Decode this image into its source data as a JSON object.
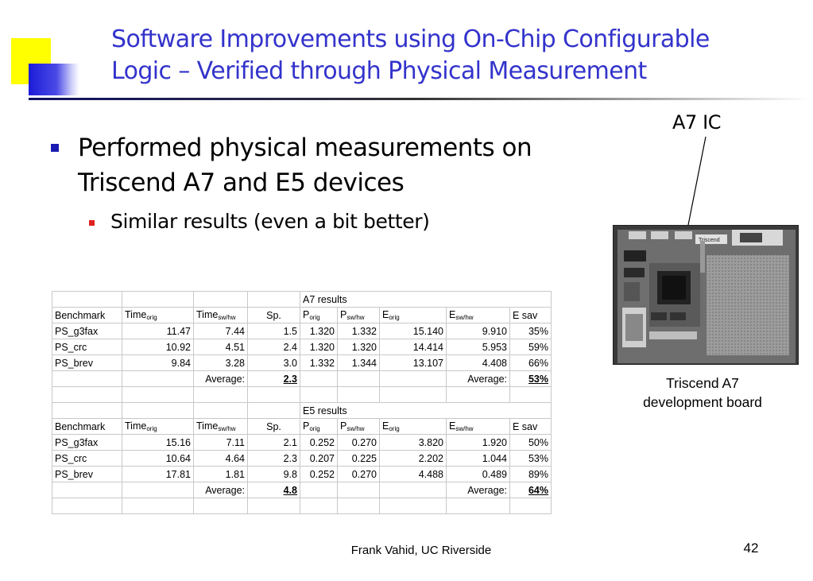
{
  "slide": {
    "title_line1": "Software Improvements using On-Chip Configurable",
    "title_line2": "Logic – Verified through Physical Measurement",
    "bullet1_line1": "Performed physical measurements on",
    "bullet1_line2": "Triscend A7 and E5 devices",
    "bullet2": "Similar results (even a bit better)",
    "chip_label": "A7 IC",
    "board_caption_line1": "Triscend A7",
    "board_caption_line2": "development board",
    "board_brand": "Triscend",
    "footer": "Frank Vahid, UC Riverside",
    "page_number": "42",
    "colors": {
      "title": "#3333cc",
      "bullet1": "#1a1ab3",
      "bullet2": "#e02020",
      "deco_yellow": "#ffff00",
      "deco_blue": "#1c1cd9"
    }
  },
  "table": {
    "a7_header": "A7 results",
    "e5_header": "E5 results",
    "columns": [
      {
        "base": "Benchmark",
        "sub": ""
      },
      {
        "base": "Time",
        "sub": "orig"
      },
      {
        "base": "Time",
        "sub": "sw/hw"
      },
      {
        "base": "Sp.",
        "sub": ""
      },
      {
        "base": "P",
        "sub": "orig"
      },
      {
        "base": "P",
        "sub": "sw/hw"
      },
      {
        "base": "E",
        "sub": "orig"
      },
      {
        "base": "E",
        "sub": "sw/hw"
      },
      {
        "base": "E sav",
        "sub": ""
      }
    ],
    "a7_rows": [
      [
        "PS_g3fax",
        "11.47",
        "7.44",
        "1.5",
        "1.320",
        "1.332",
        "15.140",
        "9.910",
        "35%"
      ],
      [
        "PS_crc",
        "10.92",
        "4.51",
        "2.4",
        "1.320",
        "1.320",
        "14.414",
        "5.953",
        "59%"
      ],
      [
        "PS_brev",
        "9.84",
        "3.28",
        "3.0",
        "1.332",
        "1.344",
        "13.107",
        "4.408",
        "66%"
      ]
    ],
    "a7_average_label": "Average:",
    "a7_avg_speedup": "2.3",
    "a7_avg_esav_label": "Average:",
    "a7_avg_esav": "53%",
    "e5_rows": [
      [
        "PS_g3fax",
        "15.16",
        "7.11",
        "2.1",
        "0.252",
        "0.270",
        "3.820",
        "1.920",
        "50%"
      ],
      [
        "PS_crc",
        "10.64",
        "4.64",
        "2.3",
        "0.207",
        "0.225",
        "2.202",
        "1.044",
        "53%"
      ],
      [
        "PS_brev",
        "17.81",
        "1.81",
        "9.8",
        "0.252",
        "0.270",
        "4.488",
        "0.489",
        "89%"
      ]
    ],
    "e5_average_label": "Average:",
    "e5_avg_speedup": "4.8",
    "e5_avg_esav_label": "Average:",
    "e5_avg_esav": "64%"
  }
}
